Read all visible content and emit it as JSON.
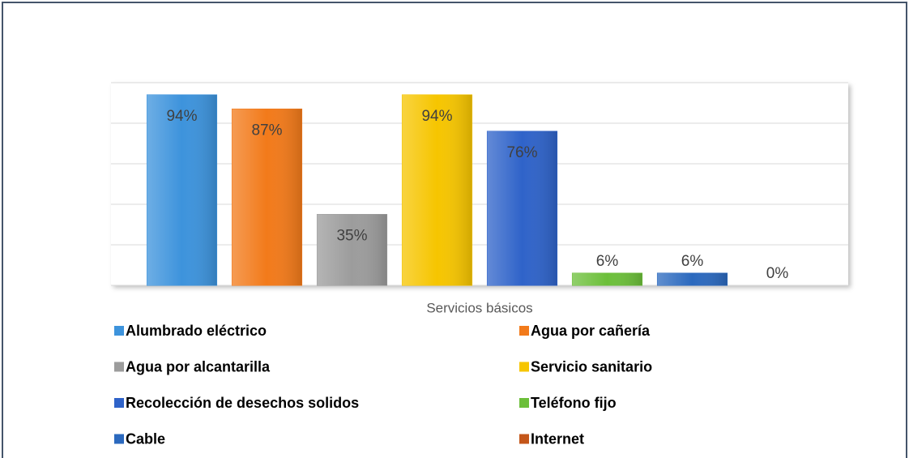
{
  "chart_data": {
    "type": "bar",
    "categories": [
      "Servicios básicos"
    ],
    "series": [
      {
        "name": "Alumbrado eléctrico",
        "color": "#3d93dc",
        "values": [
          94
        ],
        "value_labels": [
          "94%"
        ]
      },
      {
        "name": "Agua por cañería",
        "color": "#f27a1a",
        "values": [
          87
        ],
        "value_labels": [
          "87%"
        ]
      },
      {
        "name": "Agua por alcantarilla",
        "color": "#9c9c9c",
        "values": [
          35
        ],
        "value_labels": [
          "35%"
        ]
      },
      {
        "name": "Servicio sanitario",
        "color": "#f6c500",
        "values": [
          94
        ],
        "value_labels": [
          "94%"
        ]
      },
      {
        "name": "Recolección de desechos solidos",
        "color": "#2f63c9",
        "values": [
          76
        ],
        "value_labels": [
          "76%"
        ]
      },
      {
        "name": "Teléfono fijo",
        "color": "#6cbf3a",
        "values": [
          6
        ],
        "value_labels": [
          "6%"
        ]
      },
      {
        "name": "Cable",
        "color": "#2b69be",
        "values": [
          6
        ],
        "value_labels": [
          "6%"
        ]
      },
      {
        "name": "Internet",
        "color": "#c4561a",
        "values": [
          0
        ],
        "value_labels": [
          "0%"
        ]
      }
    ],
    "ylim": [
      0,
      100
    ],
    "yticks": [
      0,
      20,
      40,
      60,
      80,
      100
    ],
    "grid": true
  }
}
